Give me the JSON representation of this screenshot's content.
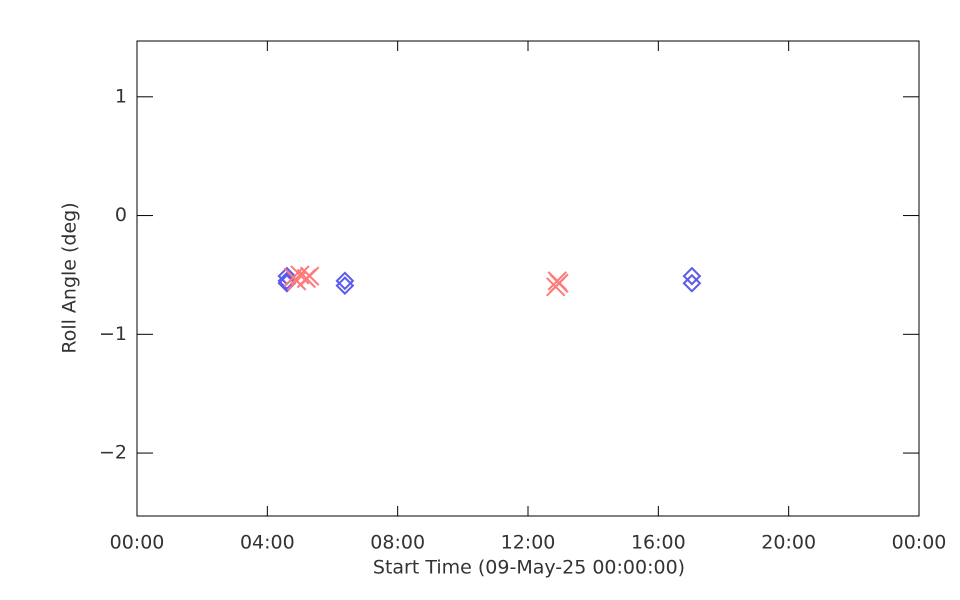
{
  "chart_data": {
    "type": "scatter",
    "xlabel": "Start Time (09-May-25 00:00:00)",
    "ylabel": "Roll Angle (deg)",
    "xlim": [
      0,
      24
    ],
    "xticks": [
      {
        "value": 0,
        "label": "00:00"
      },
      {
        "value": 4,
        "label": "04:00"
      },
      {
        "value": 8,
        "label": "08:00"
      },
      {
        "value": 12,
        "label": "12:00"
      },
      {
        "value": 16,
        "label": "16:00"
      },
      {
        "value": 20,
        "label": "20:00"
      },
      {
        "value": 24,
        "label": "00:00"
      }
    ],
    "ylim": [
      -2.53,
      1.47
    ],
    "yticks": [
      -2,
      -1,
      0,
      1
    ],
    "series": [
      {
        "color": "#5a5af0",
        "marker": "diamond",
        "x": [
          4.6,
          4.6,
          4.6,
          6.38,
          6.38,
          17.03,
          17.03
        ],
        "values": [
          -0.51,
          -0.55,
          -0.57,
          -0.55,
          -0.59,
          -0.51,
          -0.57
        ]
      },
      {
        "color": "#ff7a7a",
        "marker": "x",
        "x": [
          4.8,
          4.9,
          5.0,
          5.2,
          5.3,
          12.85,
          12.9,
          12.95
        ],
        "values": [
          -0.52,
          -0.55,
          -0.5,
          -0.53,
          -0.51,
          -0.6,
          -0.55,
          -0.57
        ]
      }
    ]
  }
}
